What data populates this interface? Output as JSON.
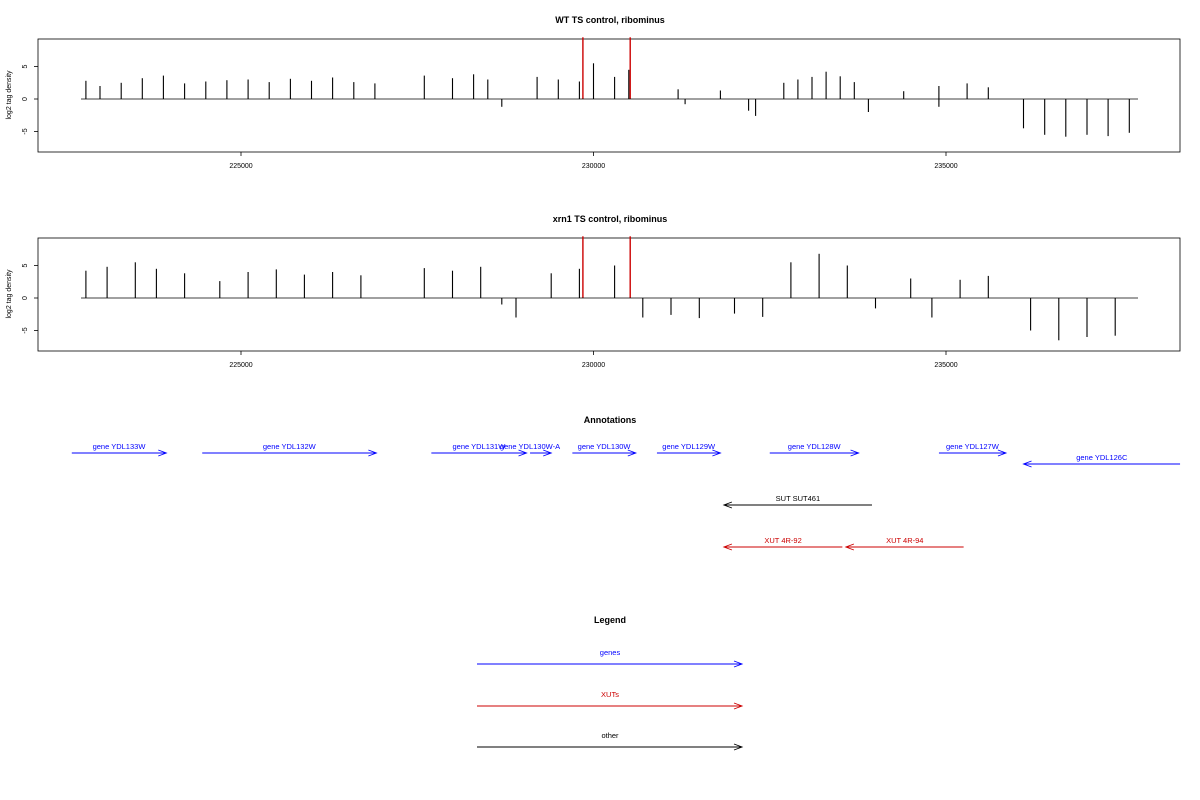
{
  "chart_data": [
    {
      "type": "bar",
      "title": "WT TS control, ribominus",
      "xlabel": "",
      "ylabel": "log2 tag density",
      "x_ticks": [
        "225000",
        "230000",
        "235000"
      ],
      "y_ticks": [
        "-5",
        "0",
        "5"
      ],
      "xlim": [
        222200,
        238500
      ],
      "ylim": [
        -9,
        10
      ],
      "series": [
        {
          "color": "#000000",
          "values": [
            [
              222800,
              2.8
            ],
            [
              223000,
              2.0
            ],
            [
              223300,
              2.5
            ],
            [
              223600,
              3.2
            ],
            [
              223900,
              3.6
            ],
            [
              224200,
              2.4
            ],
            [
              224500,
              2.7
            ],
            [
              224800,
              2.9
            ],
            [
              225100,
              3.0
            ],
            [
              225400,
              2.6
            ],
            [
              225700,
              3.1
            ],
            [
              226000,
              2.8
            ],
            [
              226300,
              3.3
            ],
            [
              226600,
              2.6
            ],
            [
              226900,
              2.4
            ],
            [
              227600,
              3.6
            ],
            [
              228000,
              3.2
            ],
            [
              228300,
              3.8
            ],
            [
              228500,
              3.0
            ],
            [
              228700,
              -1.2
            ],
            [
              229200,
              3.4
            ],
            [
              229500,
              3.0
            ],
            [
              229800,
              2.7
            ],
            [
              230000,
              5.5
            ],
            [
              230300,
              3.4
            ],
            [
              230500,
              4.5
            ],
            [
              231200,
              1.5
            ],
            [
              231300,
              -0.8
            ],
            [
              231800,
              1.3
            ],
            [
              232200,
              -1.8
            ],
            [
              232300,
              -2.6
            ],
            [
              232700,
              2.5
            ],
            [
              232900,
              3.0
            ],
            [
              233100,
              3.4
            ],
            [
              233300,
              4.2
            ],
            [
              233500,
              3.5
            ],
            [
              233700,
              2.6
            ],
            [
              233900,
              -2.0
            ],
            [
              234400,
              1.2
            ],
            [
              234900,
              2.0
            ],
            [
              234900,
              -1.2
            ],
            [
              235300,
              2.4
            ],
            [
              235600,
              1.8
            ],
            [
              236100,
              -4.5
            ],
            [
              236400,
              -5.5
            ],
            [
              236700,
              -5.8
            ],
            [
              237000,
              -5.5
            ],
            [
              237300,
              -5.7
            ],
            [
              237600,
              -5.2
            ]
          ]
        },
        {
          "color": "#cc0000",
          "values": [
            [
              229850,
              9.5
            ],
            [
              230520,
              9.5
            ]
          ]
        }
      ]
    },
    {
      "type": "bar",
      "title": "xrn1 TS control, ribominus",
      "xlabel": "",
      "ylabel": "log2 tag density",
      "x_ticks": [
        "225000",
        "230000",
        "235000"
      ],
      "y_ticks": [
        "-5",
        "0",
        "5"
      ],
      "xlim": [
        222200,
        238500
      ],
      "ylim": [
        -9,
        10
      ],
      "series": [
        {
          "color": "#000000",
          "values": [
            [
              222800,
              4.2
            ],
            [
              223100,
              4.8
            ],
            [
              223500,
              5.5
            ],
            [
              223800,
              4.5
            ],
            [
              224200,
              3.8
            ],
            [
              224700,
              2.6
            ],
            [
              225100,
              4.0
            ],
            [
              225500,
              4.4
            ],
            [
              225900,
              3.6
            ],
            [
              226300,
              4.0
            ],
            [
              226700,
              3.5
            ],
            [
              227600,
              4.6
            ],
            [
              228000,
              4.2
            ],
            [
              228400,
              4.8
            ],
            [
              228700,
              -1.0
            ],
            [
              228900,
              -3.0
            ],
            [
              229400,
              3.8
            ],
            [
              229800,
              4.5
            ],
            [
              230300,
              5.0
            ],
            [
              230700,
              -3.0
            ],
            [
              231100,
              -2.6
            ],
            [
              231500,
              -3.1
            ],
            [
              232000,
              -2.4
            ],
            [
              232400,
              -2.9
            ],
            [
              232800,
              5.5
            ],
            [
              233200,
              6.8
            ],
            [
              233600,
              5.0
            ],
            [
              234000,
              -1.6
            ],
            [
              234500,
              3.0
            ],
            [
              234800,
              -3.0
            ],
            [
              235200,
              2.8
            ],
            [
              235600,
              3.4
            ],
            [
              236200,
              -5.0
            ],
            [
              236600,
              -6.5
            ],
            [
              237000,
              -6.0
            ],
            [
              237400,
              -5.8
            ]
          ]
        },
        {
          "color": "#cc0000",
          "values": [
            [
              229850,
              9.5
            ],
            [
              230520,
              9.5
            ]
          ]
        }
      ]
    }
  ],
  "annotations": {
    "title": "Annotations",
    "items": [
      {
        "label": "gene YDL133W",
        "color": "#0000ff",
        "direction": "right",
        "start": 222600,
        "end": 223940,
        "row": 0
      },
      {
        "label": "gene YDL132W",
        "color": "#0000ff",
        "direction": "right",
        "start": 224450,
        "end": 226920,
        "row": 0
      },
      {
        "label": "gene YDL131W",
        "color": "#0000ff",
        "direction": "right",
        "start": 227700,
        "end": 229050,
        "row": 0
      },
      {
        "label": "gene YDL130W-A",
        "color": "#0000ff",
        "direction": "right",
        "start": 228800,
        "end": 229400,
        "row": 0,
        "arrow_start": 229100
      },
      {
        "label": "gene YDL130W",
        "color": "#0000ff",
        "direction": "right",
        "start": 229700,
        "end": 230600,
        "row": 0
      },
      {
        "label": "gene YDL129W",
        "color": "#0000ff",
        "direction": "right",
        "start": 230900,
        "end": 231800,
        "row": 0
      },
      {
        "label": "gene YDL128W",
        "color": "#0000ff",
        "direction": "right",
        "start": 232500,
        "end": 233760,
        "row": 0
      },
      {
        "label": "gene YDL127W",
        "color": "#0000ff",
        "direction": "right",
        "start": 234900,
        "end": 235850,
        "row": 0
      },
      {
        "label": "gene YDL126C",
        "color": "#0000ff",
        "direction": "left",
        "start": 236100,
        "end": 238320,
        "row": 1
      },
      {
        "label": "SUT SUT461",
        "color": "#000000",
        "direction": "left",
        "start": 231850,
        "end": 233950,
        "row": 2
      },
      {
        "label": "XUT 4R-92",
        "color": "#cc0000",
        "direction": "left",
        "start": 231850,
        "end": 233530,
        "row": 3
      },
      {
        "label": "XUT 4R-94",
        "color": "#cc0000",
        "direction": "left",
        "start": 233580,
        "end": 235250,
        "row": 3
      }
    ]
  },
  "legend": {
    "title": "Legend",
    "items": [
      {
        "label": "genes",
        "color": "#0000ff"
      },
      {
        "label": "XUTs",
        "color": "#cc0000"
      },
      {
        "label": "other",
        "color": "#000000"
      }
    ]
  }
}
